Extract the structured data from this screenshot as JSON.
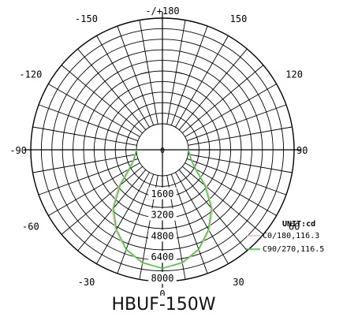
{
  "chart_data": {
    "type": "polar",
    "title": "HBUF-150W",
    "unit_label": "UNIT:cd",
    "angle_labels": [
      "-/+180",
      "150",
      "120",
      "90",
      "60",
      "30",
      "0",
      "-30",
      "-60",
      "-90",
      "-120",
      "-150"
    ],
    "angle_values": [
      180,
      150,
      120,
      90,
      60,
      30,
      0,
      -30,
      -60,
      -90,
      -120,
      -150
    ],
    "radial_ticks": [
      1600,
      3200,
      4800,
      6400,
      8000
    ],
    "radial_tick_labels": [
      "1600",
      "3200",
      "4800",
      "6400",
      "8000"
    ],
    "rmax": 8000,
    "grid": true,
    "series": [
      {
        "name": "C0/180,116.3",
        "color": "#f2b8c0",
        "points": [
          [
            -90,
            0
          ],
          [
            -80,
            150
          ],
          [
            -70,
            400
          ],
          [
            -60,
            1000
          ],
          [
            -50,
            2400
          ],
          [
            -40,
            3950
          ],
          [
            -30,
            5100
          ],
          [
            -20,
            6100
          ],
          [
            -10,
            6750
          ],
          [
            0,
            7000
          ],
          [
            10,
            6750
          ],
          [
            20,
            6100
          ],
          [
            30,
            5100
          ],
          [
            40,
            3950
          ],
          [
            50,
            2400
          ],
          [
            60,
            1000
          ],
          [
            70,
            400
          ],
          [
            80,
            150
          ],
          [
            90,
            0
          ]
        ]
      },
      {
        "name": "C90/270,116.5",
        "color": "#33cc33",
        "points": [
          [
            -90,
            0
          ],
          [
            -80,
            120
          ],
          [
            -70,
            350
          ],
          [
            -60,
            900
          ],
          [
            -50,
            2200
          ],
          [
            -40,
            3800
          ],
          [
            -30,
            5000
          ],
          [
            -20,
            6050
          ],
          [
            -10,
            6700
          ],
          [
            0,
            7000
          ],
          [
            10,
            6700
          ],
          [
            20,
            6050
          ],
          [
            30,
            5000
          ],
          [
            40,
            3800
          ],
          [
            50,
            2200
          ],
          [
            60,
            900
          ],
          [
            70,
            350
          ],
          [
            80,
            120
          ],
          [
            90,
            0
          ]
        ]
      }
    ]
  }
}
